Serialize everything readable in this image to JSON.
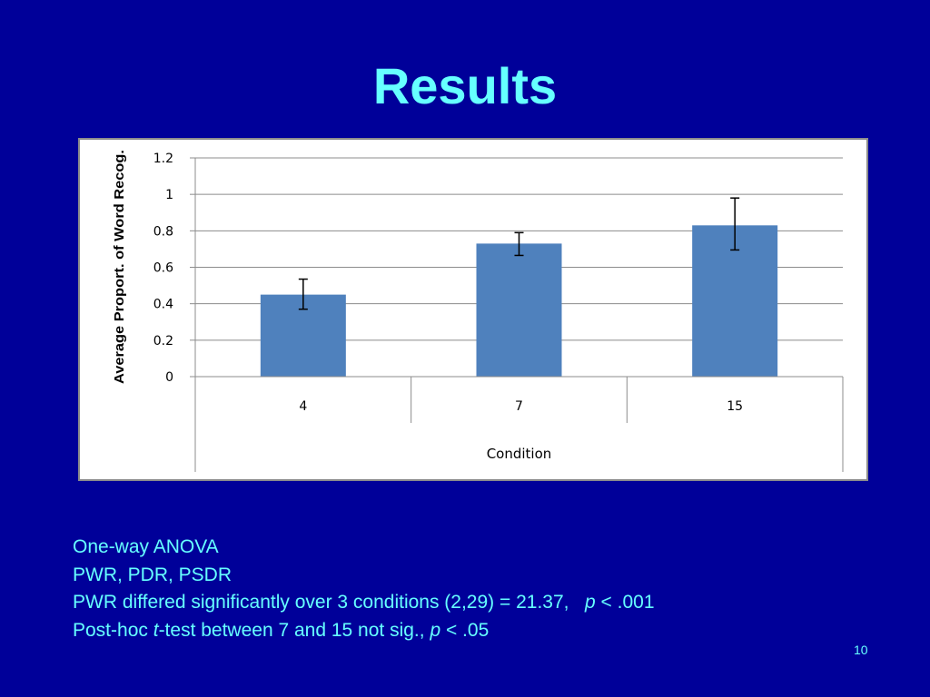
{
  "slide": {
    "title": "Results",
    "page_number": "10"
  },
  "notes": {
    "line1": "One-way ANOVA",
    "line2": "PWR, PDR, PSDR",
    "line3_a": "PWR differed significantly over 3 conditions (2,29) = 21.37,   ",
    "line3_p": "p",
    "line3_b": " < .001",
    "line4_a": "Post-hoc ",
    "line4_t": "t",
    "line4_b": "-test between 7 and 15 not sig., ",
    "line4_p": "p",
    "line4_c": " < .05"
  },
  "colors": {
    "background": "#000099",
    "accent_text": "#66ffff",
    "bar": "#4f81bd"
  },
  "chart_data": {
    "type": "bar",
    "categories": [
      "4",
      "7",
      "15"
    ],
    "values": [
      0.45,
      0.73,
      0.83
    ],
    "error_low": [
      0.37,
      0.665,
      0.695
    ],
    "error_high": [
      0.535,
      0.79,
      0.98
    ],
    "xlabel": "Condition",
    "ylabel": "Average Proport. of Word Recog.",
    "ylim": [
      0,
      1.2
    ],
    "yticks": [
      "0",
      "0.2",
      "0.4",
      "0.6",
      "0.8",
      "1",
      "1.2"
    ],
    "grid": true,
    "legend": "none"
  }
}
